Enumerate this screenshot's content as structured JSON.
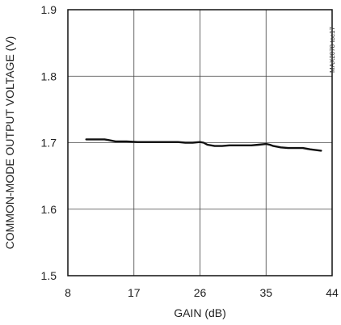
{
  "chart_data": {
    "type": "line",
    "xlabel": "GAIN (dB)",
    "ylabel": "COMMON-MODE OUTPUT VOLTAGE (V)",
    "side_note": "MAX2078 toc17",
    "xlim": [
      8,
      44
    ],
    "ylim": [
      1.5,
      1.9
    ],
    "x_ticks": [
      8,
      17,
      26,
      35,
      44
    ],
    "y_ticks": [
      1.5,
      1.6,
      1.7,
      1.8,
      1.9
    ],
    "grid": true,
    "series": [
      {
        "x": [
          10.5,
          12,
          13,
          13.5,
          14.5,
          16,
          17.5,
          19,
          21,
          23,
          24,
          25,
          26,
          26.5,
          27,
          28,
          29,
          30,
          31,
          33,
          34,
          35,
          35.5,
          36,
          37,
          38,
          39,
          40,
          41,
          42.5
        ],
        "y": [
          1.705,
          1.705,
          1.705,
          1.704,
          1.702,
          1.702,
          1.701,
          1.701,
          1.701,
          1.701,
          1.7,
          1.7,
          1.701,
          1.7,
          1.697,
          1.695,
          1.695,
          1.696,
          1.696,
          1.696,
          1.697,
          1.698,
          1.697,
          1.695,
          1.693,
          1.692,
          1.692,
          1.692,
          1.69,
          1.688
        ],
        "color": "#111111"
      }
    ]
  }
}
